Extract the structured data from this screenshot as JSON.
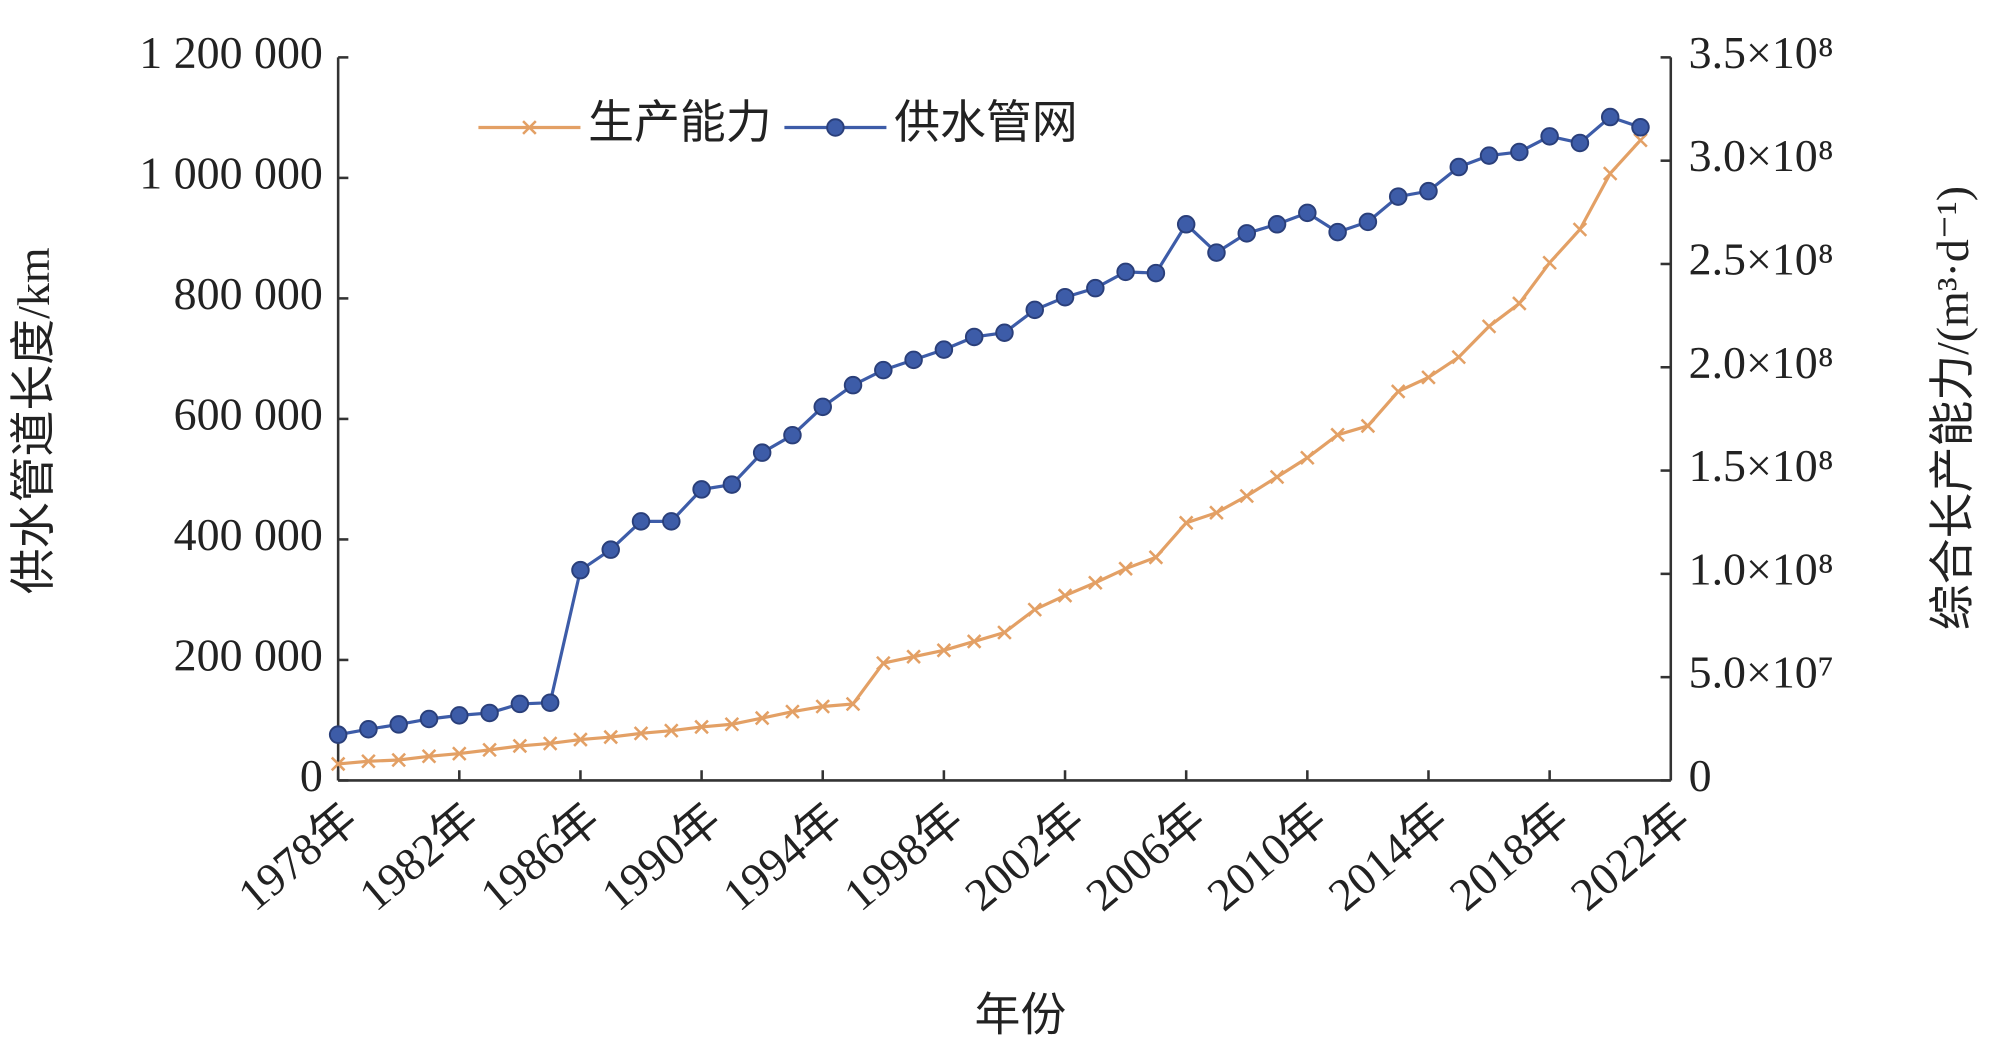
{
  "chart_data": {
    "type": "line",
    "x_label": "年份",
    "y_label": "供水管道长度/km",
    "y2_label": "综合长产能力/(m³·d⁻¹)",
    "x": [
      1978,
      1979,
      1980,
      1981,
      1982,
      1983,
      1984,
      1985,
      1986,
      1987,
      1988,
      1989,
      1990,
      1991,
      1992,
      1993,
      1994,
      1995,
      1996,
      1997,
      1998,
      1999,
      2000,
      2001,
      2002,
      2003,
      2004,
      2005,
      2006,
      2007,
      2008,
      2009,
      2010,
      2011,
      2012,
      2013,
      2014,
      2015,
      2016,
      2017,
      2018,
      2019,
      2020,
      2021
    ],
    "xlim": [
      1978,
      2022
    ],
    "xticks": [
      {
        "value": 1978,
        "label": "1978年"
      },
      {
        "value": 1982,
        "label": "1982年"
      },
      {
        "value": 1986,
        "label": "1986年"
      },
      {
        "value": 1990,
        "label": "1990年"
      },
      {
        "value": 1994,
        "label": "1994年"
      },
      {
        "value": 1998,
        "label": "1998年"
      },
      {
        "value": 2002,
        "label": "2002年"
      },
      {
        "value": 2006,
        "label": "2006年"
      },
      {
        "value": 2010,
        "label": "2010年"
      },
      {
        "value": 2014,
        "label": "2014年"
      },
      {
        "value": 2018,
        "label": "2018年"
      },
      {
        "value": 2022,
        "label": "2022年"
      }
    ],
    "ylim": [
      0,
      1200000
    ],
    "yticks": [
      0,
      {
        "value": 200000,
        "label": "200 000"
      },
      {
        "value": 400000,
        "label": "400 000"
      },
      {
        "value": 600000,
        "label": "600 000"
      },
      {
        "value": 800000,
        "label": "800 000"
      },
      {
        "value": 1000000,
        "label": "1 000 000"
      },
      {
        "value": 1200000,
        "label": "1 200 000"
      }
    ],
    "y2lim": [
      0,
      350000000
    ],
    "y2ticks": [
      0,
      {
        "value": 50000000,
        "label": "5.0×10⁷"
      },
      {
        "value": 100000000,
        "label": "1.0×10⁸"
      },
      {
        "value": 150000000,
        "label": "1.5×10⁸"
      },
      {
        "value": 200000000,
        "label": "2.0×10⁸"
      },
      {
        "value": 250000000,
        "label": "2.5×10⁸"
      },
      {
        "value": 300000000,
        "label": "3.0×10⁸"
      },
      {
        "value": 350000000,
        "label": "3.5×10⁸"
      }
    ],
    "legend": "top",
    "series": [
      {
        "name": "生产能力",
        "color": "#e3a065",
        "marker": "x",
        "axis": "y2",
        "values": [
          8000000,
          9300000,
          9900000,
          11700000,
          13000000,
          14800000,
          16700000,
          17900000,
          19800000,
          21000000,
          22800000,
          24100000,
          25900000,
          27200000,
          30200000,
          33300000,
          35800000,
          37000000,
          56800000,
          59900000,
          63000000,
          67300000,
          71600000,
          82700000,
          89500000,
          95700000,
          102500000,
          108000000,
          124700000,
          129600000,
          137700000,
          146900000,
          156200000,
          167300000,
          171600000,
          188300000,
          195100000,
          204900000,
          219800000,
          230900000,
          250600000,
          266700000,
          293800000,
          309900000
        ]
      },
      {
        "name": "供水管网",
        "color": "#3d5ca8",
        "marker": "circle",
        "values": [
          76000,
          85000,
          93000,
          102000,
          108000,
          112000,
          127000,
          129000,
          349000,
          383000,
          430000,
          430000,
          483000,
          491000,
          544000,
          573000,
          620000,
          656000,
          681000,
          698000,
          715000,
          736000,
          743000,
          781000,
          802000,
          817000,
          844000,
          842000,
          923000,
          876000,
          908000,
          923000,
          942000,
          910000,
          927000,
          969000,
          978000,
          1018000,
          1037000,
          1043000,
          1069000,
          1058000,
          1101000,
          1084000
        ]
      }
    ]
  }
}
